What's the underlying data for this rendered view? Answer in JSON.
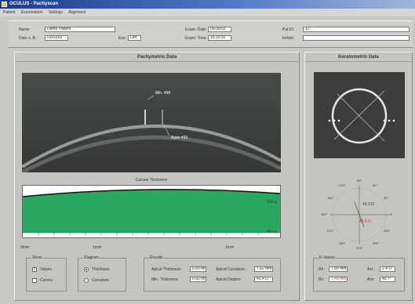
{
  "window": {
    "title": "OCULUS - Pachyscan"
  },
  "menu": [
    "Patient",
    "Examination",
    "Settings",
    "Alignment"
  ],
  "patient": {
    "name_label": "Name:",
    "name_value": "Demo Patient",
    "dob_label": "Date o. B.:",
    "dob_value": "01/01/02",
    "eye_label": "Eye:",
    "eye_value": "Left",
    "exam_date_label": "Exam. Date:",
    "exam_date_value": "05/30/03",
    "exam_time_label": "Exam. Time:",
    "exam_time_value": "15:32:32",
    "patid_label": "Pat.ID:",
    "patid_value": "12",
    "indstrr_label": "Indstrr:",
    "indstrr_value": ""
  },
  "pachy": {
    "header": "Pachymetric Data",
    "min_label": "Min. 498",
    "apex_label": "Apex 499",
    "thickness_title": "Cornea Thickness",
    "y_ticks": [
      "500 µ",
      "450 µ"
    ],
    "x_ticks": [
      "0mm",
      "1mm",
      "1mm"
    ]
  },
  "show": {
    "title": "Show",
    "values_label": "Values",
    "curves_label": "Curves",
    "values_checked": "✓",
    "curves_checked": ""
  },
  "diagram": {
    "title": "Diagram",
    "thickness_label": "Thickness",
    "curvature_label": "Curvature"
  },
  "results": {
    "title": "Results",
    "apical_thickness_label": "Apical Thickness:",
    "apical_thickness_value": "0.50 mm",
    "min_thickness_label": "Min. Thickness:",
    "min_thickness_value": "0.50 mm",
    "apical_curvature_label": "Apical Curvature:",
    "apical_curvature_value": "7.82 mm",
    "apical_dioptre_label": "Apical Dioptre:",
    "apical_dioptre_value": "43.4 D"
  },
  "kerato": {
    "header": "Keratometric Data",
    "center_value": "43.3 D",
    "lower_value": "45.6 D",
    "polar_labels": [
      "90°",
      "60°",
      "30°",
      "0°",
      "330°",
      "300°",
      "270°",
      "240°",
      "210°",
      "180°",
      "150°",
      "120°"
    ]
  },
  "kvalues": {
    "title": "K-Values",
    "rh_label": "Rh:",
    "rh_value": "7.80 mm",
    "rv_label": "Rv:",
    "rv_value": "7.40 mm",
    "axl_label": "Axl.:",
    "axl_value": "2.4 D",
    "axs_label": "Axs:",
    "axs_value": "40.7°"
  }
}
